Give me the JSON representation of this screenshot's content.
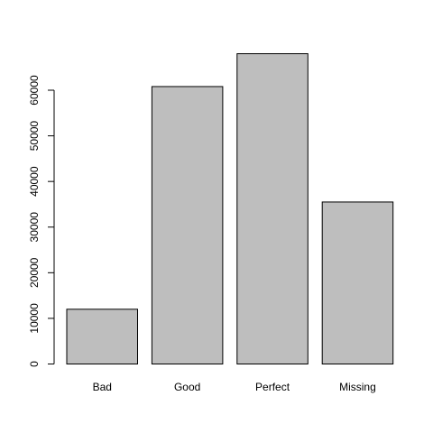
{
  "chart_data": {
    "type": "bar",
    "categories": [
      "Bad",
      "Good",
      "Perfect",
      "Missing"
    ],
    "values": [
      12000,
      60800,
      68000,
      35500
    ],
    "title": "",
    "xlabel": "",
    "ylabel": "",
    "ylim": [
      0,
      70000
    ],
    "yticks": [
      0,
      10000,
      20000,
      30000,
      40000,
      50000,
      60000
    ],
    "grid": false,
    "legend": "none",
    "colors": {
      "bar_fill": "#bebebe",
      "bar_stroke": "#000000",
      "axis": "#000000"
    }
  }
}
